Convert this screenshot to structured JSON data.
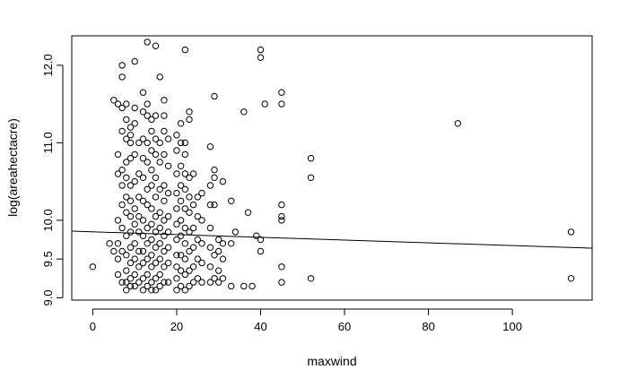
{
  "chart_data": {
    "type": "scatter",
    "xlabel": "maxwind",
    "ylabel": "log(areahectacre)",
    "xlim": [
      -5,
      119
    ],
    "ylim": [
      8.97,
      12.38
    ],
    "xticks": [
      0,
      20,
      40,
      60,
      80,
      100
    ],
    "yticks": [
      9.0,
      9.5,
      10.0,
      11.0,
      12.0
    ],
    "ytick_labels": [
      "9.0",
      "9.5",
      "10.0",
      "11.0",
      "12.0"
    ],
    "grid": false,
    "marker": "open-circle",
    "regression_line": {
      "x": [
        -5,
        119
      ],
      "y": [
        9.86,
        9.64
      ]
    },
    "points": [
      [
        0,
        9.4
      ],
      [
        4,
        9.7
      ],
      [
        5,
        9.6
      ],
      [
        5,
        11.55
      ],
      [
        6,
        9.3
      ],
      [
        6,
        9.5
      ],
      [
        6,
        9.7
      ],
      [
        6,
        10.0
      ],
      [
        6,
        10.6
      ],
      [
        6,
        10.85
      ],
      [
        6,
        11.5
      ],
      [
        7,
        9.2
      ],
      [
        7,
        9.6
      ],
      [
        7,
        9.9
      ],
      [
        7,
        10.2
      ],
      [
        7,
        10.45
      ],
      [
        7,
        10.65
      ],
      [
        7,
        11.15
      ],
      [
        7,
        11.45
      ],
      [
        7,
        11.85
      ],
      [
        7,
        12.0
      ],
      [
        8,
        9.1
      ],
      [
        8,
        9.2
      ],
      [
        8,
        9.35
      ],
      [
        8,
        9.55
      ],
      [
        8,
        9.8
      ],
      [
        8,
        10.1
      ],
      [
        8,
        10.3
      ],
      [
        8,
        10.55
      ],
      [
        8,
        10.75
      ],
      [
        8,
        11.05
      ],
      [
        8,
        11.3
      ],
      [
        8,
        11.5
      ],
      [
        9,
        9.15
      ],
      [
        9,
        9.25
      ],
      [
        9,
        9.45
      ],
      [
        9,
        9.65
      ],
      [
        9,
        9.85
      ],
      [
        9,
        10.05
      ],
      [
        9,
        10.25
      ],
      [
        9,
        10.45
      ],
      [
        9,
        10.8
      ],
      [
        9,
        11.0
      ],
      [
        9,
        11.1
      ],
      [
        9,
        11.2
      ],
      [
        10,
        9.15
      ],
      [
        10,
        9.3
      ],
      [
        10,
        9.5
      ],
      [
        10,
        9.7
      ],
      [
        10,
        9.95
      ],
      [
        10,
        10.15
      ],
      [
        10,
        10.5
      ],
      [
        10,
        10.85
      ],
      [
        10,
        11.25
      ],
      [
        10,
        11.45
      ],
      [
        10,
        12.05
      ],
      [
        11,
        9.2
      ],
      [
        11,
        9.4
      ],
      [
        11,
        9.6
      ],
      [
        11,
        9.85
      ],
      [
        11,
        10.05
      ],
      [
        11,
        10.3
      ],
      [
        11,
        10.6
      ],
      [
        11,
        11.0
      ],
      [
        12,
        9.1
      ],
      [
        12,
        9.25
      ],
      [
        12,
        9.45
      ],
      [
        12,
        9.6
      ],
      [
        12,
        9.8
      ],
      [
        12,
        10.0
      ],
      [
        12,
        10.25
      ],
      [
        12,
        10.55
      ],
      [
        12,
        10.8
      ],
      [
        12,
        11.05
      ],
      [
        12,
        11.4
      ],
      [
        12,
        11.65
      ],
      [
        13,
        9.15
      ],
      [
        13,
        9.3
      ],
      [
        13,
        9.5
      ],
      [
        13,
        9.7
      ],
      [
        13,
        9.9
      ],
      [
        13,
        10.2
      ],
      [
        13,
        10.4
      ],
      [
        13,
        10.75
      ],
      [
        13,
        11.0
      ],
      [
        13,
        11.35
      ],
      [
        13,
        11.5
      ],
      [
        13,
        12.3
      ],
      [
        14,
        9.1
      ],
      [
        14,
        9.2
      ],
      [
        14,
        9.4
      ],
      [
        14,
        9.55
      ],
      [
        14,
        9.75
      ],
      [
        14,
        9.95
      ],
      [
        14,
        10.15
      ],
      [
        14,
        10.45
      ],
      [
        14,
        10.65
      ],
      [
        14,
        10.9
      ],
      [
        14,
        11.15
      ],
      [
        14,
        11.3
      ],
      [
        15,
        9.1
      ],
      [
        15,
        9.25
      ],
      [
        15,
        9.45
      ],
      [
        15,
        9.65
      ],
      [
        15,
        9.85
      ],
      [
        15,
        10.05
      ],
      [
        15,
        10.3
      ],
      [
        15,
        10.55
      ],
      [
        15,
        10.85
      ],
      [
        15,
        11.05
      ],
      [
        15,
        11.35
      ],
      [
        15,
        12.25
      ],
      [
        16,
        9.15
      ],
      [
        16,
        9.3
      ],
      [
        16,
        9.5
      ],
      [
        16,
        9.7
      ],
      [
        16,
        9.9
      ],
      [
        16,
        10.1
      ],
      [
        16,
        10.4
      ],
      [
        16,
        10.75
      ],
      [
        16,
        11.0
      ],
      [
        16,
        11.85
      ],
      [
        17,
        9.2
      ],
      [
        17,
        9.4
      ],
      [
        17,
        9.6
      ],
      [
        17,
        9.8
      ],
      [
        17,
        10.0
      ],
      [
        17,
        10.25
      ],
      [
        17,
        10.45
      ],
      [
        17,
        10.85
      ],
      [
        17,
        11.15
      ],
      [
        17,
        11.35
      ],
      [
        17,
        11.55
      ],
      [
        18,
        9.2
      ],
      [
        18,
        9.45
      ],
      [
        18,
        9.65
      ],
      [
        18,
        9.85
      ],
      [
        18,
        10.05
      ],
      [
        18,
        10.35
      ],
      [
        18,
        10.7
      ],
      [
        18,
        11.05
      ],
      [
        20,
        9.1
      ],
      [
        20,
        9.25
      ],
      [
        20,
        9.4
      ],
      [
        20,
        9.55
      ],
      [
        20,
        9.75
      ],
      [
        20,
        9.95
      ],
      [
        20,
        10.15
      ],
      [
        20,
        10.35
      ],
      [
        20,
        10.6
      ],
      [
        20,
        10.9
      ],
      [
        20,
        11.1
      ],
      [
        21,
        9.15
      ],
      [
        21,
        9.35
      ],
      [
        21,
        9.55
      ],
      [
        21,
        9.8
      ],
      [
        21,
        10.0
      ],
      [
        21,
        10.25
      ],
      [
        21,
        10.45
      ],
      [
        21,
        10.7
      ],
      [
        21,
        11.0
      ],
      [
        21,
        11.25
      ],
      [
        22,
        9.1
      ],
      [
        22,
        9.3
      ],
      [
        22,
        9.5
      ],
      [
        22,
        9.7
      ],
      [
        22,
        9.9
      ],
      [
        22,
        10.15
      ],
      [
        22,
        10.4
      ],
      [
        22,
        10.6
      ],
      [
        22,
        10.85
      ],
      [
        22,
        11.0
      ],
      [
        22,
        12.2
      ],
      [
        23,
        9.15
      ],
      [
        23,
        9.35
      ],
      [
        23,
        9.6
      ],
      [
        23,
        9.85
      ],
      [
        23,
        10.1
      ],
      [
        23,
        10.3
      ],
      [
        23,
        10.55
      ],
      [
        23,
        11.3
      ],
      [
        23,
        11.4
      ],
      [
        24,
        9.2
      ],
      [
        24,
        9.4
      ],
      [
        24,
        9.65
      ],
      [
        24,
        9.9
      ],
      [
        24,
        10.2
      ],
      [
        24,
        10.6
      ],
      [
        25,
        9.25
      ],
      [
        25,
        9.5
      ],
      [
        25,
        9.75
      ],
      [
        25,
        10.05
      ],
      [
        25,
        10.3
      ],
      [
        26,
        9.2
      ],
      [
        26,
        9.45
      ],
      [
        26,
        9.7
      ],
      [
        26,
        10.0
      ],
      [
        26,
        10.35
      ],
      [
        28,
        9.2
      ],
      [
        28,
        9.4
      ],
      [
        28,
        9.65
      ],
      [
        28,
        9.9
      ],
      [
        28,
        10.2
      ],
      [
        28,
        10.45
      ],
      [
        28,
        10.95
      ],
      [
        29,
        9.25
      ],
      [
        29,
        9.55
      ],
      [
        29,
        10.2
      ],
      [
        29,
        10.55
      ],
      [
        29,
        10.65
      ],
      [
        29,
        11.6
      ],
      [
        30,
        9.2
      ],
      [
        30,
        9.35
      ],
      [
        30,
        9.6
      ],
      [
        30,
        9.75
      ],
      [
        31,
        9.25
      ],
      [
        31,
        9.5
      ],
      [
        31,
        9.7
      ],
      [
        31,
        10.5
      ],
      [
        33,
        9.15
      ],
      [
        33,
        9.7
      ],
      [
        33,
        10.25
      ],
      [
        34,
        9.85
      ],
      [
        36,
        9.15
      ],
      [
        36,
        11.4
      ],
      [
        37,
        10.1
      ],
      [
        38,
        9.15
      ],
      [
        39,
        9.8
      ],
      [
        40,
        9.6
      ],
      [
        40,
        9.75
      ],
      [
        40,
        12.1
      ],
      [
        40,
        12.2
      ],
      [
        41,
        11.5
      ],
      [
        45,
        9.2
      ],
      [
        45,
        9.4
      ],
      [
        45,
        10.0
      ],
      [
        45,
        10.05
      ],
      [
        45,
        10.2
      ],
      [
        45,
        11.5
      ],
      [
        45,
        11.65
      ],
      [
        52,
        9.25
      ],
      [
        52,
        10.55
      ],
      [
        52,
        10.8
      ],
      [
        87,
        11.25
      ],
      [
        114,
        9.25
      ],
      [
        114,
        9.85
      ]
    ]
  }
}
